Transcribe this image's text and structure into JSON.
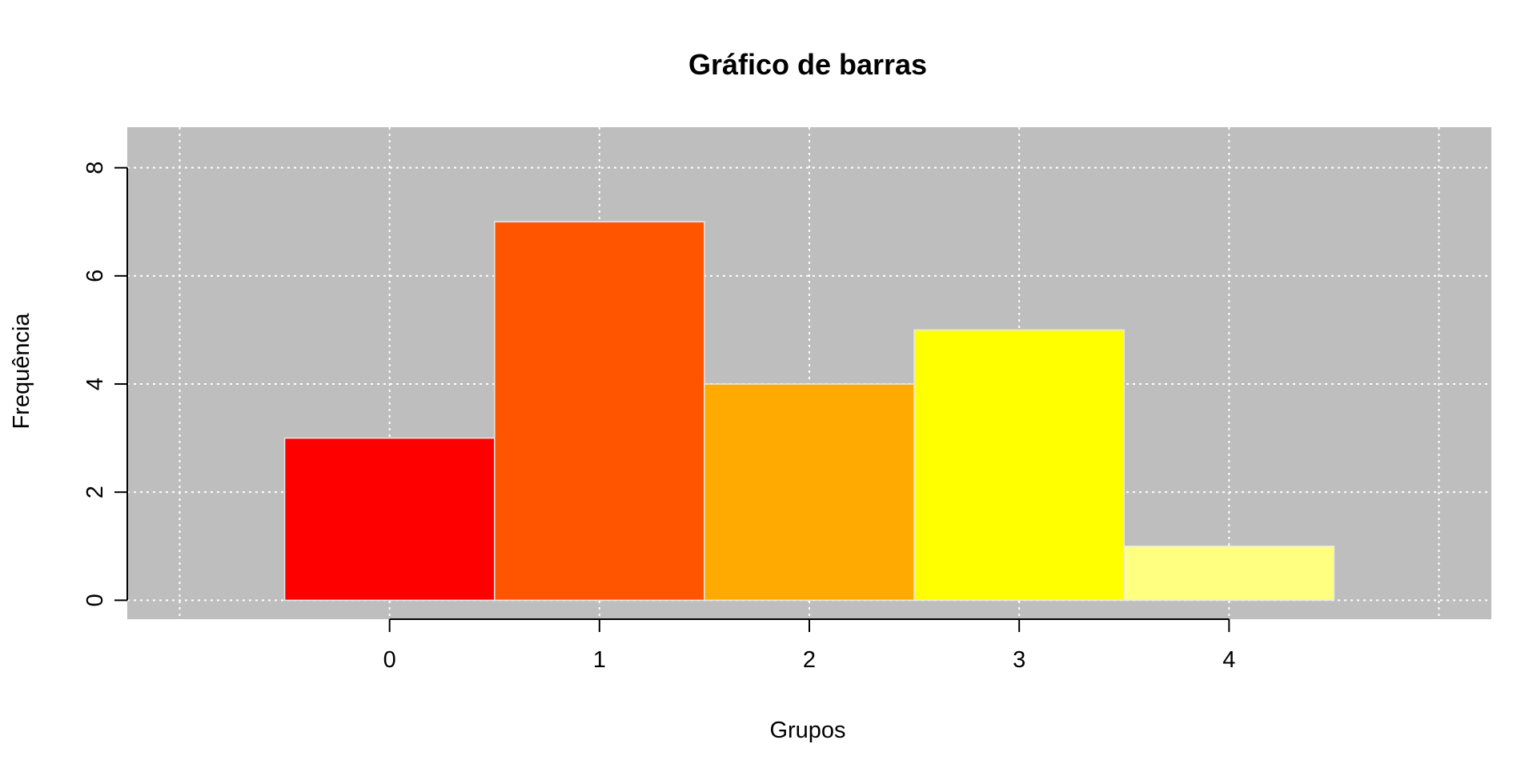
{
  "chart_data": {
    "type": "bar",
    "title": "Gráfico de barras",
    "xlabel": "Grupos",
    "ylabel": "Frequência",
    "categories": [
      "0",
      "1",
      "2",
      "3",
      "4"
    ],
    "values": [
      3,
      7,
      4,
      5,
      1
    ],
    "bar_colors": [
      "#FF0000",
      "#FF5500",
      "#FFAA00",
      "#FFFF00",
      "#FFFF80"
    ],
    "xlim": [
      -1.25,
      5.25
    ],
    "ylim": [
      -0.35,
      8.75
    ],
    "x_ticks": [
      "0",
      "1",
      "2",
      "3",
      "4"
    ],
    "y_ticks": [
      "0",
      "2",
      "4",
      "6",
      "8"
    ],
    "grid": true,
    "legend": "none",
    "panel_background": "#BEBEBE",
    "grid_color": "#FFFFFF"
  }
}
